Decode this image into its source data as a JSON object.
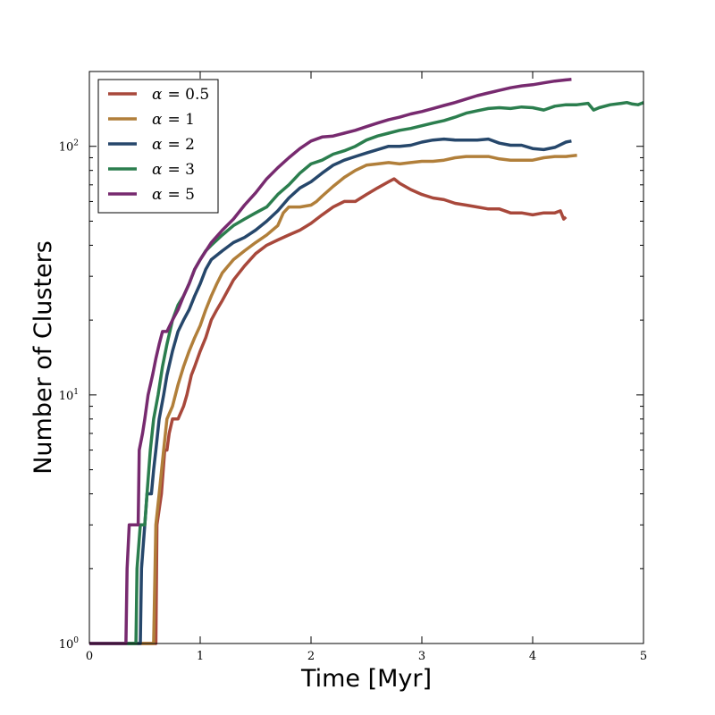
{
  "chart_data": {
    "type": "line",
    "title": "",
    "xlabel": "Time [Myr]",
    "ylabel": "Number of Clusters",
    "xlim": [
      0,
      5
    ],
    "ylim": [
      1,
      200
    ],
    "yscale": "log",
    "x_ticks": [
      0,
      1,
      2,
      3,
      4,
      5
    ],
    "x_tick_labels": [
      "0",
      "1",
      "2",
      "3",
      "4",
      "5"
    ],
    "y_ticks": [
      1,
      10,
      100
    ],
    "y_tick_bases": [
      "10",
      "10",
      "10"
    ],
    "y_tick_exponents": [
      "0",
      "1",
      "2"
    ],
    "legend_position": "top-left",
    "series": [
      {
        "name": "α = 0.5",
        "legend_symbol": "α",
        "legend_value": "= 0.5",
        "color": "#a8483b",
        "points": [
          [
            0,
            1
          ],
          [
            0.6,
            1
          ],
          [
            0.61,
            3
          ],
          [
            0.65,
            4
          ],
          [
            0.68,
            6
          ],
          [
            0.7,
            6
          ],
          [
            0.72,
            7
          ],
          [
            0.75,
            8
          ],
          [
            0.8,
            8
          ],
          [
            0.85,
            9
          ],
          [
            0.88,
            10
          ],
          [
            0.92,
            12
          ],
          [
            0.95,
            13
          ],
          [
            1.0,
            15
          ],
          [
            1.05,
            17
          ],
          [
            1.1,
            20
          ],
          [
            1.15,
            22
          ],
          [
            1.2,
            24
          ],
          [
            1.3,
            29
          ],
          [
            1.4,
            33
          ],
          [
            1.5,
            37
          ],
          [
            1.6,
            40
          ],
          [
            1.7,
            42
          ],
          [
            1.8,
            44
          ],
          [
            1.9,
            46
          ],
          [
            2.0,
            49
          ],
          [
            2.1,
            53
          ],
          [
            2.2,
            57
          ],
          [
            2.3,
            60
          ],
          [
            2.4,
            60
          ],
          [
            2.5,
            64
          ],
          [
            2.6,
            68
          ],
          [
            2.7,
            72
          ],
          [
            2.75,
            74
          ],
          [
            2.8,
            71
          ],
          [
            2.9,
            67
          ],
          [
            3.0,
            64
          ],
          [
            3.1,
            62
          ],
          [
            3.2,
            61
          ],
          [
            3.3,
            59
          ],
          [
            3.4,
            58
          ],
          [
            3.5,
            57
          ],
          [
            3.6,
            56
          ],
          [
            3.7,
            56
          ],
          [
            3.8,
            54
          ],
          [
            3.9,
            54
          ],
          [
            4.0,
            53
          ],
          [
            4.1,
            54
          ],
          [
            4.2,
            54
          ],
          [
            4.25,
            55
          ],
          [
            4.28,
            51
          ],
          [
            4.3,
            52
          ]
        ]
      },
      {
        "name": "α = 1",
        "legend_symbol": "α",
        "legend_value": "= 1",
        "color": "#b17f3a",
        "points": [
          [
            0,
            1
          ],
          [
            0.58,
            1
          ],
          [
            0.6,
            3
          ],
          [
            0.63,
            4
          ],
          [
            0.67,
            6
          ],
          [
            0.7,
            8
          ],
          [
            0.75,
            9
          ],
          [
            0.8,
            11
          ],
          [
            0.85,
            13
          ],
          [
            0.9,
            15
          ],
          [
            0.95,
            17
          ],
          [
            1.0,
            19
          ],
          [
            1.05,
            22
          ],
          [
            1.1,
            25
          ],
          [
            1.15,
            28
          ],
          [
            1.2,
            31
          ],
          [
            1.3,
            35
          ],
          [
            1.4,
            38
          ],
          [
            1.5,
            41
          ],
          [
            1.6,
            44
          ],
          [
            1.7,
            48
          ],
          [
            1.75,
            54
          ],
          [
            1.8,
            57
          ],
          [
            1.9,
            57
          ],
          [
            2.0,
            58
          ],
          [
            2.05,
            60
          ],
          [
            2.1,
            63
          ],
          [
            2.2,
            69
          ],
          [
            2.3,
            75
          ],
          [
            2.4,
            80
          ],
          [
            2.5,
            84
          ],
          [
            2.6,
            85
          ],
          [
            2.7,
            86
          ],
          [
            2.8,
            85
          ],
          [
            2.9,
            86
          ],
          [
            3.0,
            87
          ],
          [
            3.1,
            87
          ],
          [
            3.2,
            88
          ],
          [
            3.3,
            90
          ],
          [
            3.4,
            91
          ],
          [
            3.5,
            91
          ],
          [
            3.6,
            91
          ],
          [
            3.7,
            89
          ],
          [
            3.8,
            88
          ],
          [
            3.9,
            88
          ],
          [
            4.0,
            88
          ],
          [
            4.1,
            90
          ],
          [
            4.2,
            91
          ],
          [
            4.3,
            91
          ],
          [
            4.4,
            92
          ]
        ]
      },
      {
        "name": "α = 2",
        "legend_symbol": "α",
        "legend_value": "= 2",
        "color": "#26476b",
        "points": [
          [
            0,
            1
          ],
          [
            0.46,
            1
          ],
          [
            0.47,
            2
          ],
          [
            0.5,
            3
          ],
          [
            0.52,
            4
          ],
          [
            0.56,
            4
          ],
          [
            0.58,
            5
          ],
          [
            0.6,
            6
          ],
          [
            0.63,
            8
          ],
          [
            0.67,
            10
          ],
          [
            0.7,
            12
          ],
          [
            0.75,
            15
          ],
          [
            0.8,
            18
          ],
          [
            0.85,
            20
          ],
          [
            0.9,
            22
          ],
          [
            0.95,
            25
          ],
          [
            1.0,
            28
          ],
          [
            1.05,
            32
          ],
          [
            1.1,
            35
          ],
          [
            1.2,
            38
          ],
          [
            1.3,
            41
          ],
          [
            1.4,
            43
          ],
          [
            1.5,
            46
          ],
          [
            1.6,
            50
          ],
          [
            1.7,
            55
          ],
          [
            1.8,
            62
          ],
          [
            1.9,
            68
          ],
          [
            2.0,
            72
          ],
          [
            2.1,
            78
          ],
          [
            2.2,
            84
          ],
          [
            2.3,
            88
          ],
          [
            2.4,
            91
          ],
          [
            2.5,
            94
          ],
          [
            2.6,
            97
          ],
          [
            2.7,
            100
          ],
          [
            2.8,
            100
          ],
          [
            2.9,
            101
          ],
          [
            3.0,
            104
          ],
          [
            3.1,
            106
          ],
          [
            3.2,
            107
          ],
          [
            3.3,
            106
          ],
          [
            3.4,
            106
          ],
          [
            3.5,
            106
          ],
          [
            3.6,
            107
          ],
          [
            3.7,
            103
          ],
          [
            3.8,
            101
          ],
          [
            3.9,
            101
          ],
          [
            4.0,
            98
          ],
          [
            4.1,
            97
          ],
          [
            4.2,
            99
          ],
          [
            4.3,
            104
          ],
          [
            4.35,
            105
          ]
        ]
      },
      {
        "name": "α = 3",
        "legend_symbol": "α",
        "legend_value": "= 3",
        "color": "#2b7e4e",
        "points": [
          [
            0,
            1
          ],
          [
            0.42,
            1
          ],
          [
            0.43,
            2
          ],
          [
            0.46,
            3
          ],
          [
            0.5,
            3
          ],
          [
            0.52,
            4
          ],
          [
            0.55,
            6
          ],
          [
            0.58,
            8
          ],
          [
            0.62,
            10
          ],
          [
            0.66,
            13
          ],
          [
            0.7,
            16
          ],
          [
            0.75,
            20
          ],
          [
            0.8,
            23
          ],
          [
            0.85,
            25
          ],
          [
            0.9,
            28
          ],
          [
            0.95,
            32
          ],
          [
            1.0,
            35
          ],
          [
            1.05,
            38
          ],
          [
            1.1,
            40
          ],
          [
            1.2,
            44
          ],
          [
            1.3,
            48
          ],
          [
            1.4,
            51
          ],
          [
            1.5,
            54
          ],
          [
            1.6,
            57
          ],
          [
            1.7,
            64
          ],
          [
            1.8,
            70
          ],
          [
            1.9,
            78
          ],
          [
            2.0,
            85
          ],
          [
            2.1,
            88
          ],
          [
            2.2,
            93
          ],
          [
            2.3,
            96
          ],
          [
            2.4,
            100
          ],
          [
            2.5,
            106
          ],
          [
            2.6,
            110
          ],
          [
            2.7,
            113
          ],
          [
            2.8,
            116
          ],
          [
            2.9,
            118
          ],
          [
            3.0,
            121
          ],
          [
            3.1,
            124
          ],
          [
            3.2,
            127
          ],
          [
            3.3,
            131
          ],
          [
            3.4,
            136
          ],
          [
            3.5,
            139
          ],
          [
            3.6,
            142
          ],
          [
            3.7,
            143
          ],
          [
            3.8,
            142
          ],
          [
            3.9,
            144
          ],
          [
            4.0,
            143
          ],
          [
            4.1,
            140
          ],
          [
            4.2,
            145
          ],
          [
            4.3,
            147
          ],
          [
            4.4,
            147
          ],
          [
            4.5,
            149
          ],
          [
            4.55,
            140
          ],
          [
            4.6,
            143
          ],
          [
            4.7,
            147
          ],
          [
            4.8,
            149
          ],
          [
            4.85,
            150
          ],
          [
            4.9,
            148
          ],
          [
            4.95,
            147
          ],
          [
            5.0,
            150
          ]
        ]
      },
      {
        "name": "α = 5",
        "legend_symbol": "α",
        "legend_value": "= 5",
        "color": "#772a6f",
        "points": [
          [
            0,
            1
          ],
          [
            0.33,
            1
          ],
          [
            0.34,
            2
          ],
          [
            0.36,
            3
          ],
          [
            0.44,
            3
          ],
          [
            0.45,
            6
          ],
          [
            0.48,
            7
          ],
          [
            0.5,
            8
          ],
          [
            0.53,
            10
          ],
          [
            0.57,
            12
          ],
          [
            0.6,
            14
          ],
          [
            0.63,
            16
          ],
          [
            0.66,
            18
          ],
          [
            0.7,
            18
          ],
          [
            0.75,
            20
          ],
          [
            0.8,
            22
          ],
          [
            0.85,
            25
          ],
          [
            0.9,
            28
          ],
          [
            0.95,
            32
          ],
          [
            1.0,
            35
          ],
          [
            1.1,
            41
          ],
          [
            1.2,
            46
          ],
          [
            1.3,
            51
          ],
          [
            1.4,
            58
          ],
          [
            1.5,
            65
          ],
          [
            1.6,
            74
          ],
          [
            1.7,
            82
          ],
          [
            1.8,
            90
          ],
          [
            1.9,
            98
          ],
          [
            2.0,
            105
          ],
          [
            2.1,
            109
          ],
          [
            2.2,
            110
          ],
          [
            2.3,
            113
          ],
          [
            2.4,
            116
          ],
          [
            2.5,
            120
          ],
          [
            2.6,
            124
          ],
          [
            2.7,
            128
          ],
          [
            2.8,
            131
          ],
          [
            2.9,
            135
          ],
          [
            3.0,
            138
          ],
          [
            3.1,
            142
          ],
          [
            3.2,
            146
          ],
          [
            3.3,
            150
          ],
          [
            3.4,
            155
          ],
          [
            3.5,
            160
          ],
          [
            3.6,
            164
          ],
          [
            3.7,
            168
          ],
          [
            3.8,
            172
          ],
          [
            3.9,
            175
          ],
          [
            4.0,
            177
          ],
          [
            4.1,
            180
          ],
          [
            4.2,
            183
          ],
          [
            4.3,
            185
          ],
          [
            4.35,
            186
          ]
        ]
      }
    ]
  }
}
